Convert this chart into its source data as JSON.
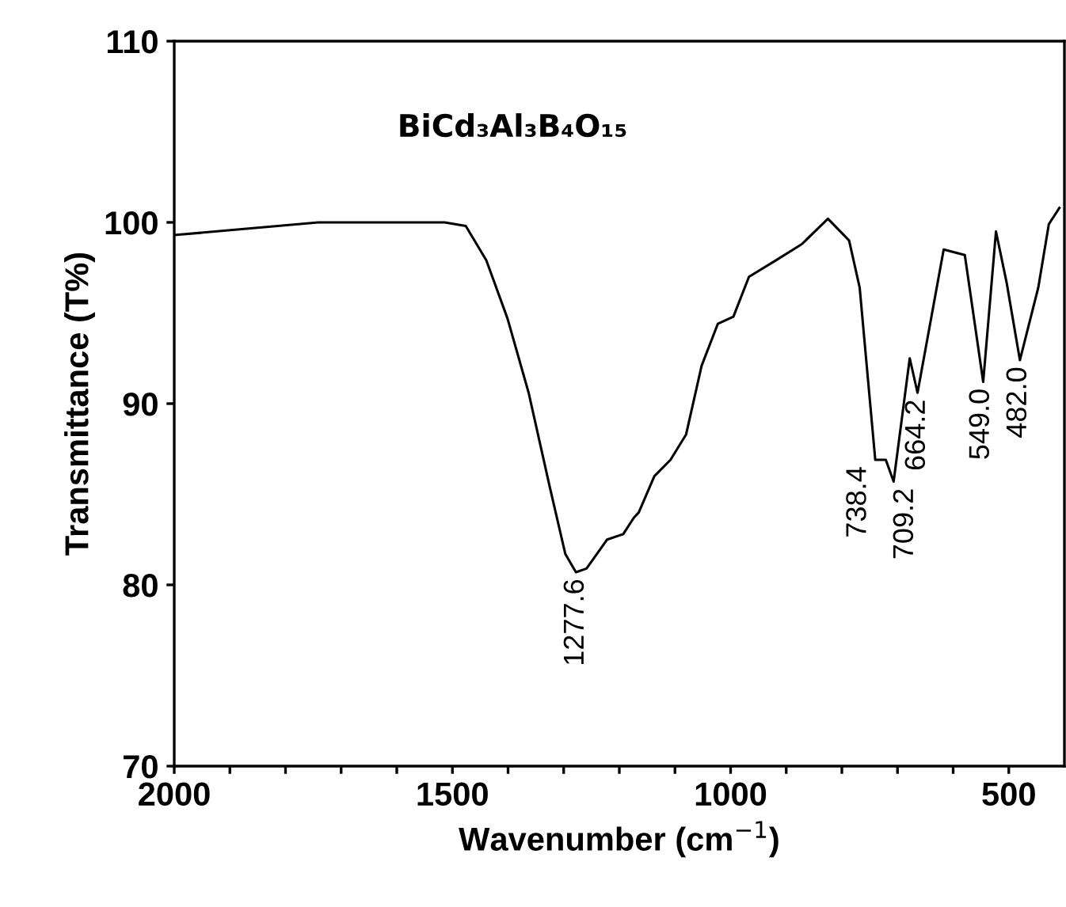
{
  "chart_data": {
    "type": "line",
    "title": "BiCd₃Al₃B₄O₁₅",
    "xlabel": "Wavenumber (cm$^{−1}$)",
    "ylabel": "Transmittance (T%)",
    "x": [
      2000,
      1741,
      1514,
      1476,
      1439,
      1401,
      1363,
      1325,
      1297,
      1278,
      1259,
      1222,
      1193,
      1174,
      1165,
      1137,
      1108,
      1080,
      1052,
      1023,
      995,
      967,
      919,
      872,
      825,
      787,
      768,
      740,
      721,
      707,
      678,
      664,
      617,
      579,
      546,
      523,
      504,
      480,
      447,
      428,
      409
    ],
    "series": [
      {
        "color": "#000000",
        "values": [
          99.3,
          100.0,
          100.0,
          99.8,
          97.9,
          94.7,
          90.6,
          85.4,
          81.7,
          80.7,
          80.9,
          82.5,
          82.8,
          83.7,
          84.0,
          86.0,
          86.9,
          88.3,
          92.1,
          94.4,
          94.8,
          97.0,
          97.9,
          98.8,
          100.2,
          99.0,
          96.4,
          86.9,
          86.9,
          85.7,
          92.5,
          90.6,
          98.5,
          98.2,
          91.2,
          99.5,
          96.7,
          92.4,
          96.4,
          99.9,
          100.8
        ]
      }
    ],
    "xlim": [
      2000,
      400
    ],
    "ylim": [
      70,
      110
    ],
    "xticks": [
      2000,
      {
        "value": 1900,
        "label": null
      },
      {
        "value": 1800,
        "label": null
      },
      {
        "value": 1700,
        "label": null
      },
      {
        "value": 1600,
        "label": null
      },
      1500,
      {
        "value": 1400,
        "label": null
      },
      {
        "value": 1300,
        "label": null
      },
      {
        "value": 1200,
        "label": null
      },
      {
        "value": 1100,
        "label": null
      },
      1000,
      {
        "value": 900,
        "label": null
      },
      {
        "value": 800,
        "label": null
      },
      {
        "value": 700,
        "label": null
      },
      {
        "value": 600,
        "label": null
      },
      500
    ],
    "yticks": [
      70,
      80,
      90,
      100,
      110
    ],
    "grid": false,
    "legend": false,
    "marker": "none",
    "line_style": "solid",
    "annotations": [
      {
        "text": "1277.6",
        "x": 1277.6,
        "y": 80.7
      },
      {
        "text": "738.4",
        "x": 738.4,
        "y": 86.9
      },
      {
        "text": "709.2",
        "x": 709.2,
        "y": 85.7
      },
      {
        "text": "664.2",
        "x": 664.2,
        "y": 90.6
      },
      {
        "text": "549.0",
        "x": 549.0,
        "y": 91.2
      },
      {
        "text": "482.0",
        "x": 482.0,
        "y": 92.4
      }
    ]
  }
}
